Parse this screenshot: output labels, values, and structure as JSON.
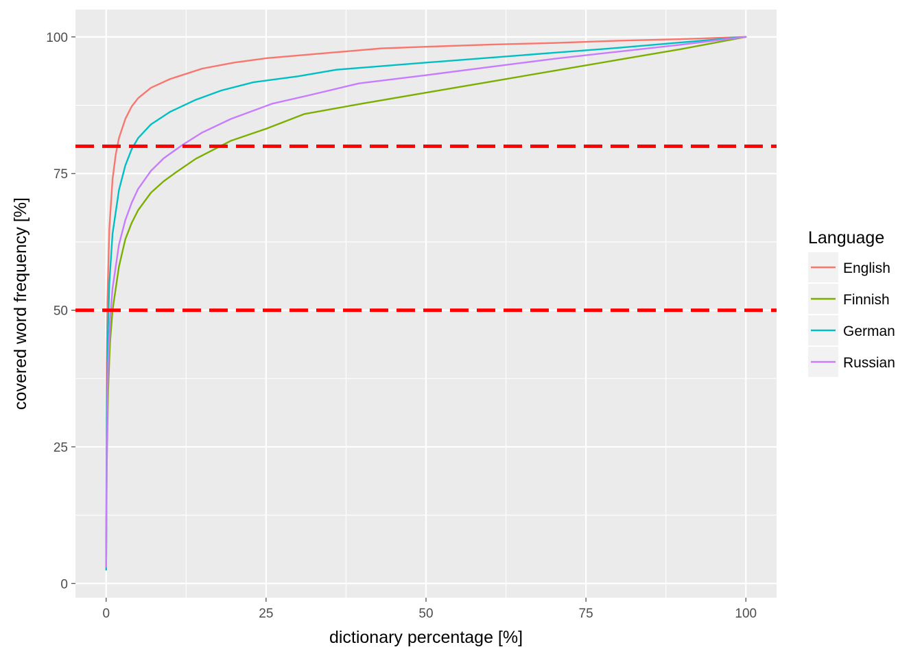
{
  "chart_data": {
    "type": "line",
    "title": "",
    "xlabel": "dictionary percentage [%]",
    "ylabel": "covered word frequency [%]",
    "xlim": [
      -4.8,
      104.8
    ],
    "ylim": [
      -2.6,
      105.0
    ],
    "x_ticks": [
      0,
      25,
      50,
      75,
      100
    ],
    "y_ticks": [
      0,
      25,
      50,
      75,
      100
    ],
    "x_tick_labels": [
      "0",
      "25",
      "50",
      "75",
      "100"
    ],
    "y_tick_labels": [
      "0",
      "25",
      "50",
      "75",
      "100"
    ],
    "grid": true,
    "legend": {
      "title": "Language",
      "placement": "right",
      "entries": [
        "English",
        "Finnish",
        "German",
        "Russian"
      ]
    },
    "reference_lines": [
      {
        "y": 80,
        "color": "#ff0000",
        "style": "dashed"
      },
      {
        "y": 50,
        "color": "#ff0000",
        "style": "dashed"
      }
    ],
    "series": [
      {
        "name": "English",
        "color": "#f8766d",
        "points": [
          [
            0,
            5
          ],
          [
            0.1,
            40
          ],
          [
            0.2,
            52
          ],
          [
            0.5,
            65
          ],
          [
            1,
            74
          ],
          [
            1.5,
            78.5
          ],
          [
            2,
            81.5
          ],
          [
            3,
            85
          ],
          [
            4,
            87.3
          ],
          [
            5,
            88.8
          ],
          [
            7,
            90.7
          ],
          [
            10,
            92.3
          ],
          [
            15,
            94.2
          ],
          [
            20,
            95.3
          ],
          [
            25,
            96.1
          ],
          [
            30,
            96.6
          ],
          [
            35,
            97.1
          ],
          [
            43,
            97.9
          ],
          [
            50,
            98.2
          ],
          [
            60,
            98.6
          ],
          [
            70,
            98.9
          ],
          [
            80,
            99.3
          ],
          [
            90,
            99.6
          ],
          [
            100,
            100
          ]
        ]
      },
      {
        "name": "Finnish",
        "color": "#7cae00",
        "points": [
          [
            0,
            3
          ],
          [
            0.1,
            22
          ],
          [
            0.3,
            35
          ],
          [
            0.6,
            44
          ],
          [
            1,
            50
          ],
          [
            2,
            58
          ],
          [
            3,
            63
          ],
          [
            4,
            66
          ],
          [
            5,
            68.3
          ],
          [
            7,
            71.5
          ],
          [
            9,
            73.6
          ],
          [
            11,
            75.3
          ],
          [
            14,
            77.7
          ],
          [
            17,
            79.5
          ],
          [
            19.5,
            81
          ],
          [
            25,
            83.2
          ],
          [
            31,
            85.9
          ],
          [
            40,
            87.8
          ],
          [
            50,
            89.8
          ],
          [
            60,
            91.8
          ],
          [
            70,
            93.8
          ],
          [
            80,
            95.8
          ],
          [
            90,
            97.8
          ],
          [
            100,
            100
          ]
        ]
      },
      {
        "name": "German",
        "color": "#00bfc4",
        "points": [
          [
            0,
            2.5
          ],
          [
            0.1,
            33
          ],
          [
            0.2,
            43
          ],
          [
            0.5,
            55
          ],
          [
            1,
            64
          ],
          [
            2,
            72
          ],
          [
            3,
            76.5
          ],
          [
            4,
            79.5
          ],
          [
            5,
            81.5
          ],
          [
            7,
            84
          ],
          [
            10,
            86.3
          ],
          [
            14,
            88.5
          ],
          [
            18,
            90.2
          ],
          [
            23,
            91.7
          ],
          [
            30,
            92.8
          ],
          [
            36,
            94
          ],
          [
            50,
            95.3
          ],
          [
            60,
            96.2
          ],
          [
            70,
            97.1
          ],
          [
            80,
            98
          ],
          [
            90,
            99
          ],
          [
            100,
            100
          ]
        ]
      },
      {
        "name": "Russian",
        "color": "#c77cff",
        "points": [
          [
            0,
            3
          ],
          [
            0.1,
            26
          ],
          [
            0.3,
            40
          ],
          [
            0.6,
            48
          ],
          [
            1,
            54
          ],
          [
            2,
            62
          ],
          [
            3,
            66.5
          ],
          [
            4,
            69.7
          ],
          [
            5,
            72.2
          ],
          [
            7,
            75.5
          ],
          [
            9,
            77.8
          ],
          [
            12,
            80.3
          ],
          [
            15,
            82.5
          ],
          [
            19.5,
            85
          ],
          [
            26,
            87.8
          ],
          [
            32,
            89.4
          ],
          [
            39.5,
            91.5
          ],
          [
            50,
            93
          ],
          [
            60,
            94.5
          ],
          [
            70,
            96
          ],
          [
            80,
            97.3
          ],
          [
            90,
            98.6
          ],
          [
            100,
            100
          ]
        ]
      }
    ]
  }
}
